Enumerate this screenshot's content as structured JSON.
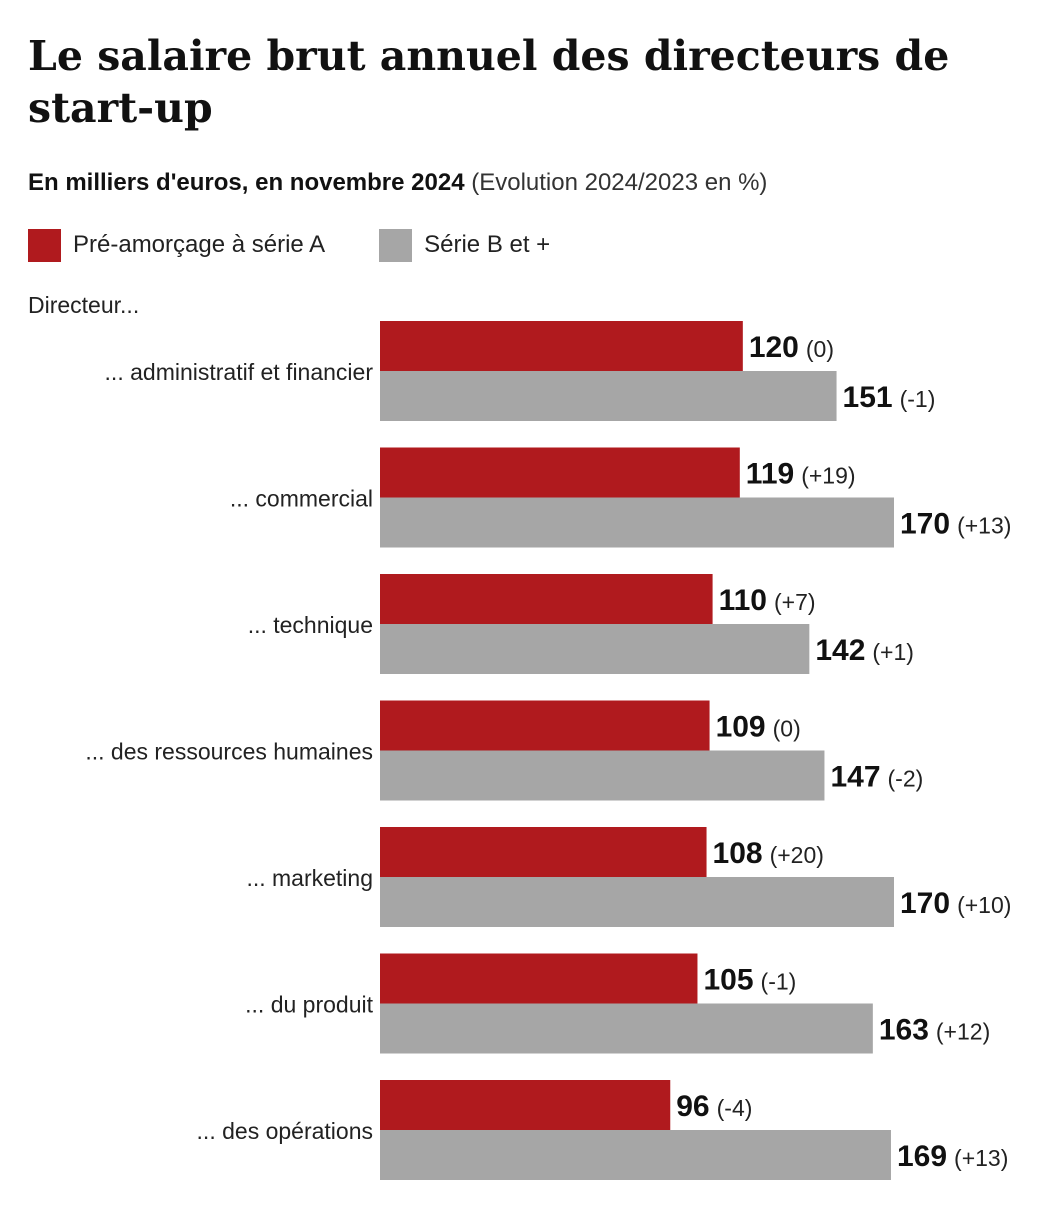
{
  "title": "Le salaire brut annuel des directeurs de start-up",
  "subtitle_strong": "En milliers d'euros, en novembre 2024",
  "subtitle_light": "(Evolution 2024/2023 en %)",
  "axis_title": "Directeur...",
  "colors": {
    "series_a": "#b01a1e",
    "series_b": "#a6a6a6",
    "text": "#111111"
  },
  "chart_data": {
    "type": "bar",
    "orientation": "horizontal",
    "title": "Le salaire brut annuel des directeurs de start-up",
    "subtitle": "En milliers d'euros, en novembre 2024 (Evolution 2024/2023 en %)",
    "ylabel": "Directeur...",
    "xlabel": "",
    "xlim": [
      0,
      170
    ],
    "grid": false,
    "legend_position": "top-left",
    "categories": [
      "... administratif et financier",
      "... commercial",
      "... technique",
      "... des ressources humaines",
      "... marketing",
      "... du produit",
      "... des opérations"
    ],
    "series": [
      {
        "name": "Pré-amorçage à série A",
        "values": [
          120,
          119,
          110,
          109,
          108,
          105,
          96
        ],
        "changes": [
          "(0)",
          "(+19)",
          "(+7)",
          "(0)",
          "(+20)",
          "(-1)",
          "(-4)"
        ]
      },
      {
        "name": "Série B et +",
        "values": [
          151,
          170,
          142,
          147,
          170,
          163,
          169
        ],
        "changes": [
          "(-1)",
          "(+13)",
          "(+1)",
          "(-2)",
          "(+10)",
          "(+12)",
          "(+13)"
        ]
      }
    ]
  }
}
